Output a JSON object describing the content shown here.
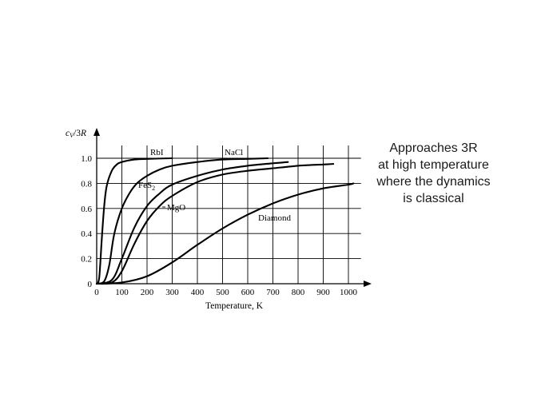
{
  "chart_data": {
    "type": "line",
    "title": "",
    "ylabel_parts": [
      "c",
      "V",
      "/3",
      "R"
    ],
    "xlabel": "Temperature, K",
    "xlim": [
      0,
      1050
    ],
    "ylim": [
      0,
      1.0
    ],
    "xticks": [
      0,
      100,
      200,
      300,
      400,
      500,
      600,
      700,
      800,
      900,
      1000
    ],
    "yticks": [
      0,
      0.2,
      0.4,
      0.6,
      0.8,
      1.0
    ],
    "ytick_labels": [
      "0",
      "0.2",
      "0.4",
      "0.6",
      "0.8",
      "1.0"
    ],
    "grid": true,
    "series": [
      {
        "name": "RbI",
        "points": [
          [
            0,
            0
          ],
          [
            10,
            0.05
          ],
          [
            20,
            0.35
          ],
          [
            30,
            0.62
          ],
          [
            40,
            0.78
          ],
          [
            60,
            0.9
          ],
          [
            80,
            0.95
          ],
          [
            100,
            0.97
          ],
          [
            150,
            0.99
          ],
          [
            200,
            0.995
          ],
          [
            300,
            1.0
          ]
        ]
      },
      {
        "name": "NaCl",
        "points": [
          [
            0,
            0
          ],
          [
            30,
            0.02
          ],
          [
            50,
            0.15
          ],
          [
            70,
            0.4
          ],
          [
            100,
            0.6
          ],
          [
            130,
            0.72
          ],
          [
            160,
            0.8
          ],
          [
            200,
            0.86
          ],
          [
            250,
            0.91
          ],
          [
            300,
            0.94
          ],
          [
            400,
            0.97
          ],
          [
            500,
            0.99
          ],
          [
            600,
            0.995
          ],
          [
            680,
            1.0
          ]
        ]
      },
      {
        "name": "FeS",
        "name_sub": "2",
        "points": [
          [
            0,
            0
          ],
          [
            60,
            0.03
          ],
          [
            100,
            0.2
          ],
          [
            150,
            0.45
          ],
          [
            200,
            0.62
          ],
          [
            250,
            0.72
          ],
          [
            300,
            0.79
          ],
          [
            400,
            0.86
          ],
          [
            500,
            0.91
          ],
          [
            600,
            0.94
          ],
          [
            700,
            0.96
          ],
          [
            760,
            0.97
          ]
        ]
      },
      {
        "name": "MgO",
        "points": [
          [
            0,
            0
          ],
          [
            60,
            0.01
          ],
          [
            100,
            0.1
          ],
          [
            150,
            0.32
          ],
          [
            200,
            0.5
          ],
          [
            250,
            0.62
          ],
          [
            300,
            0.7
          ],
          [
            400,
            0.81
          ],
          [
            500,
            0.87
          ],
          [
            600,
            0.9
          ],
          [
            700,
            0.92
          ],
          [
            800,
            0.94
          ],
          [
            900,
            0.95
          ],
          [
            940,
            0.955
          ]
        ]
      },
      {
        "name": "Diamond",
        "points": [
          [
            0,
            0
          ],
          [
            100,
            0.01
          ],
          [
            200,
            0.06
          ],
          [
            300,
            0.17
          ],
          [
            400,
            0.31
          ],
          [
            500,
            0.44
          ],
          [
            600,
            0.55
          ],
          [
            700,
            0.64
          ],
          [
            800,
            0.71
          ],
          [
            900,
            0.76
          ],
          [
            1000,
            0.79
          ],
          [
            1020,
            0.8
          ]
        ]
      }
    ]
  },
  "side_text": [
    "Approaches 3R",
    "at high temperature",
    "where the dynamics",
    "is classical"
  ]
}
